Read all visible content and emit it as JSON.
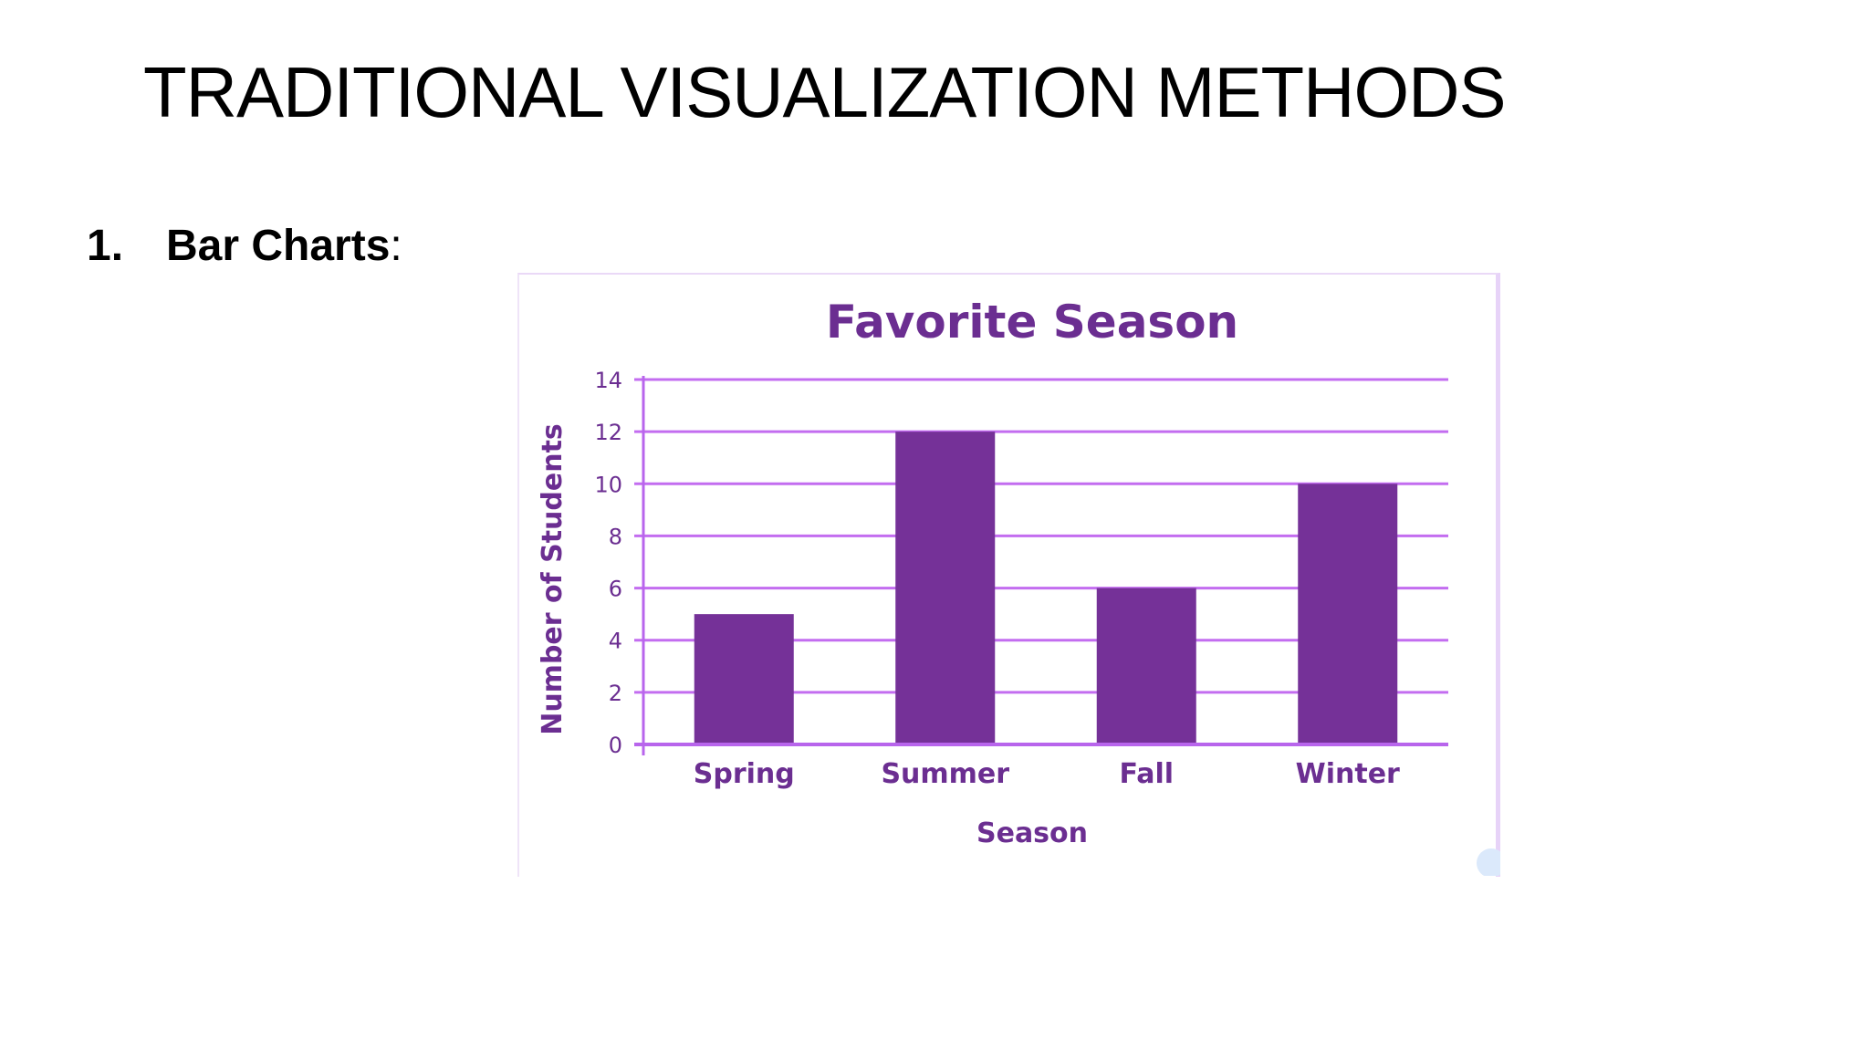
{
  "slide": {
    "title": "TRADITIONAL VISUALIZATION METHODS",
    "bullet_number": "1.",
    "bullet_label": "Bar Charts",
    "bullet_suffix": ":"
  },
  "colors": {
    "bar": "#753198",
    "grid": "#c36df0",
    "axis": "#b865ec",
    "text": "#6b2e91"
  },
  "chart_data": {
    "type": "bar",
    "title": "Favorite Season",
    "xlabel": "Season",
    "ylabel": "Number of Students",
    "categories": [
      "Spring",
      "Summer",
      "Fall",
      "Winter"
    ],
    "values": [
      5,
      12,
      6,
      10
    ],
    "ylim": [
      0,
      14
    ],
    "yticks": [
      0,
      2,
      4,
      6,
      8,
      10,
      12,
      14
    ],
    "grid": true,
    "legend": "none"
  }
}
